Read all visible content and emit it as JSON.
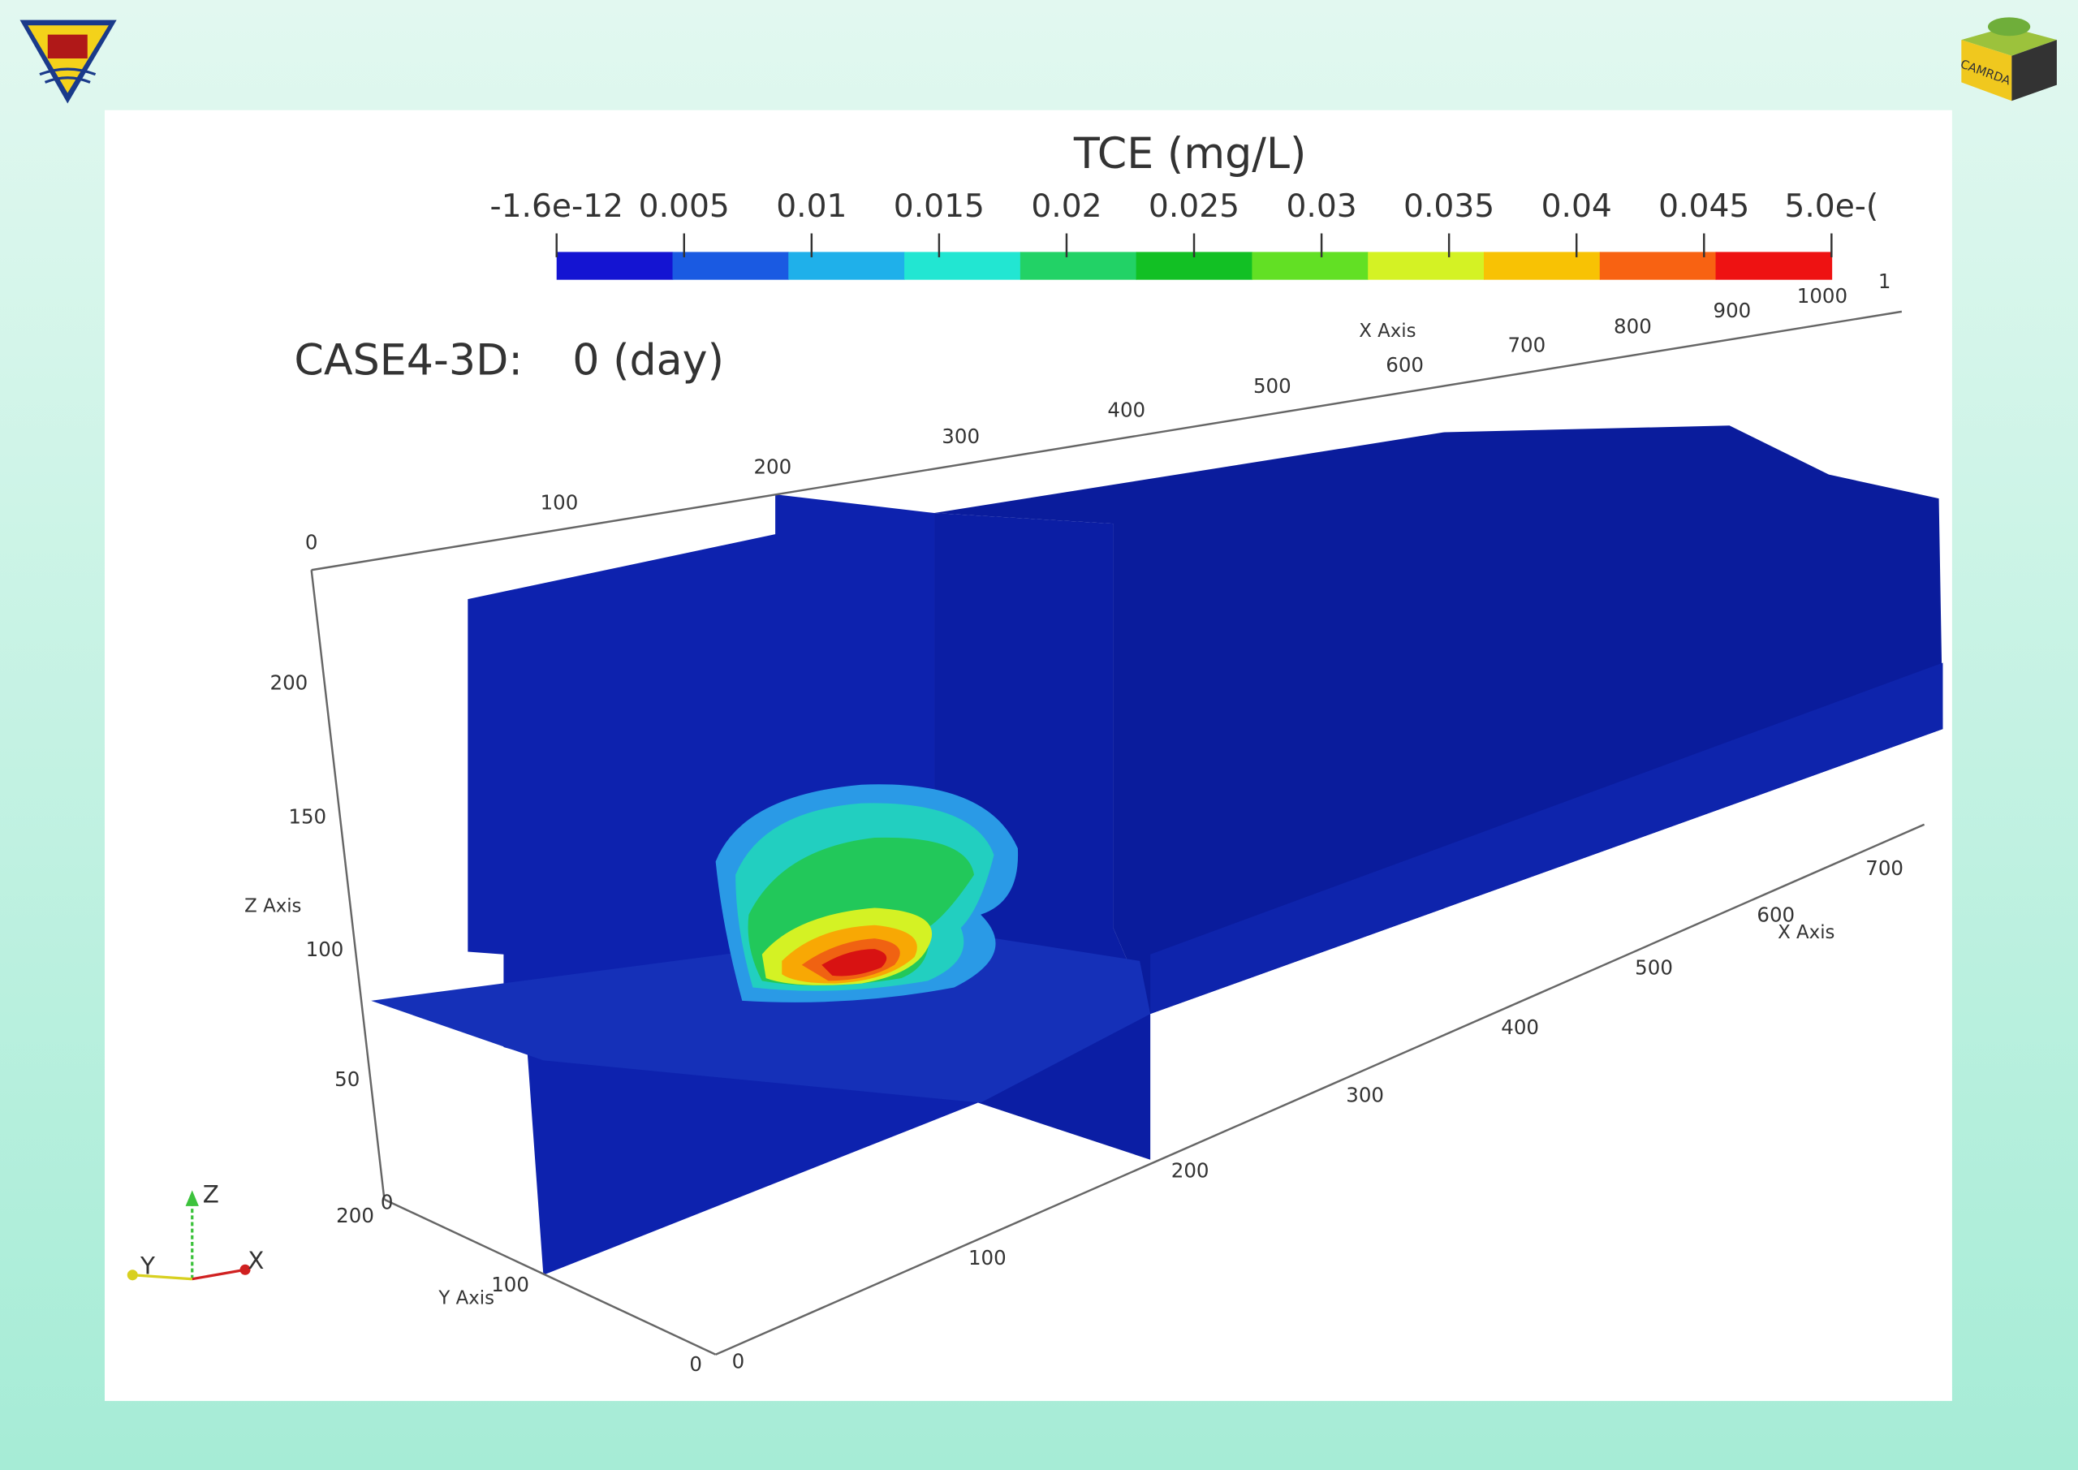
{
  "colorbar": {
    "title": "TCE (mg/L)",
    "tick_labels": [
      "-1.6e-12",
      "0.005",
      "0.01",
      "0.015",
      "0.02",
      "0.025",
      "0.03",
      "0.035",
      "0.04",
      "0.045",
      "5.0e-("
    ],
    "colors": [
      "#1414d2",
      "#1a5ae2",
      "#1fb0ea",
      "#22e6d2",
      "#22d266",
      "#12c024",
      "#62e024",
      "#d4f224",
      "#f8c204",
      "#f86212",
      "#ee1212"
    ]
  },
  "case_label": "CASE4-3D:",
  "time_label": "0 (day)",
  "x_axis_top": {
    "label": "X Axis",
    "tick_labels": [
      "0",
      "100",
      "200",
      "300",
      "400",
      "500",
      "600",
      "700",
      "800",
      "900",
      "1000",
      "1"
    ]
  },
  "z_axis": {
    "label": "Z Axis",
    "tick_labels": [
      "200",
      "150",
      "100",
      "50",
      "0"
    ]
  },
  "y_axis": {
    "label": "Y Axis",
    "tick_labels": [
      "200",
      "100",
      "0"
    ]
  },
  "x_axis_bottom": {
    "label": "X Axis",
    "tick_labels": [
      "0",
      "100",
      "200",
      "300",
      "400",
      "500",
      "600",
      "700"
    ]
  },
  "triad": {
    "x": "X",
    "y": "Y",
    "z": "Z"
  },
  "logo_right": "CAMRDA"
}
